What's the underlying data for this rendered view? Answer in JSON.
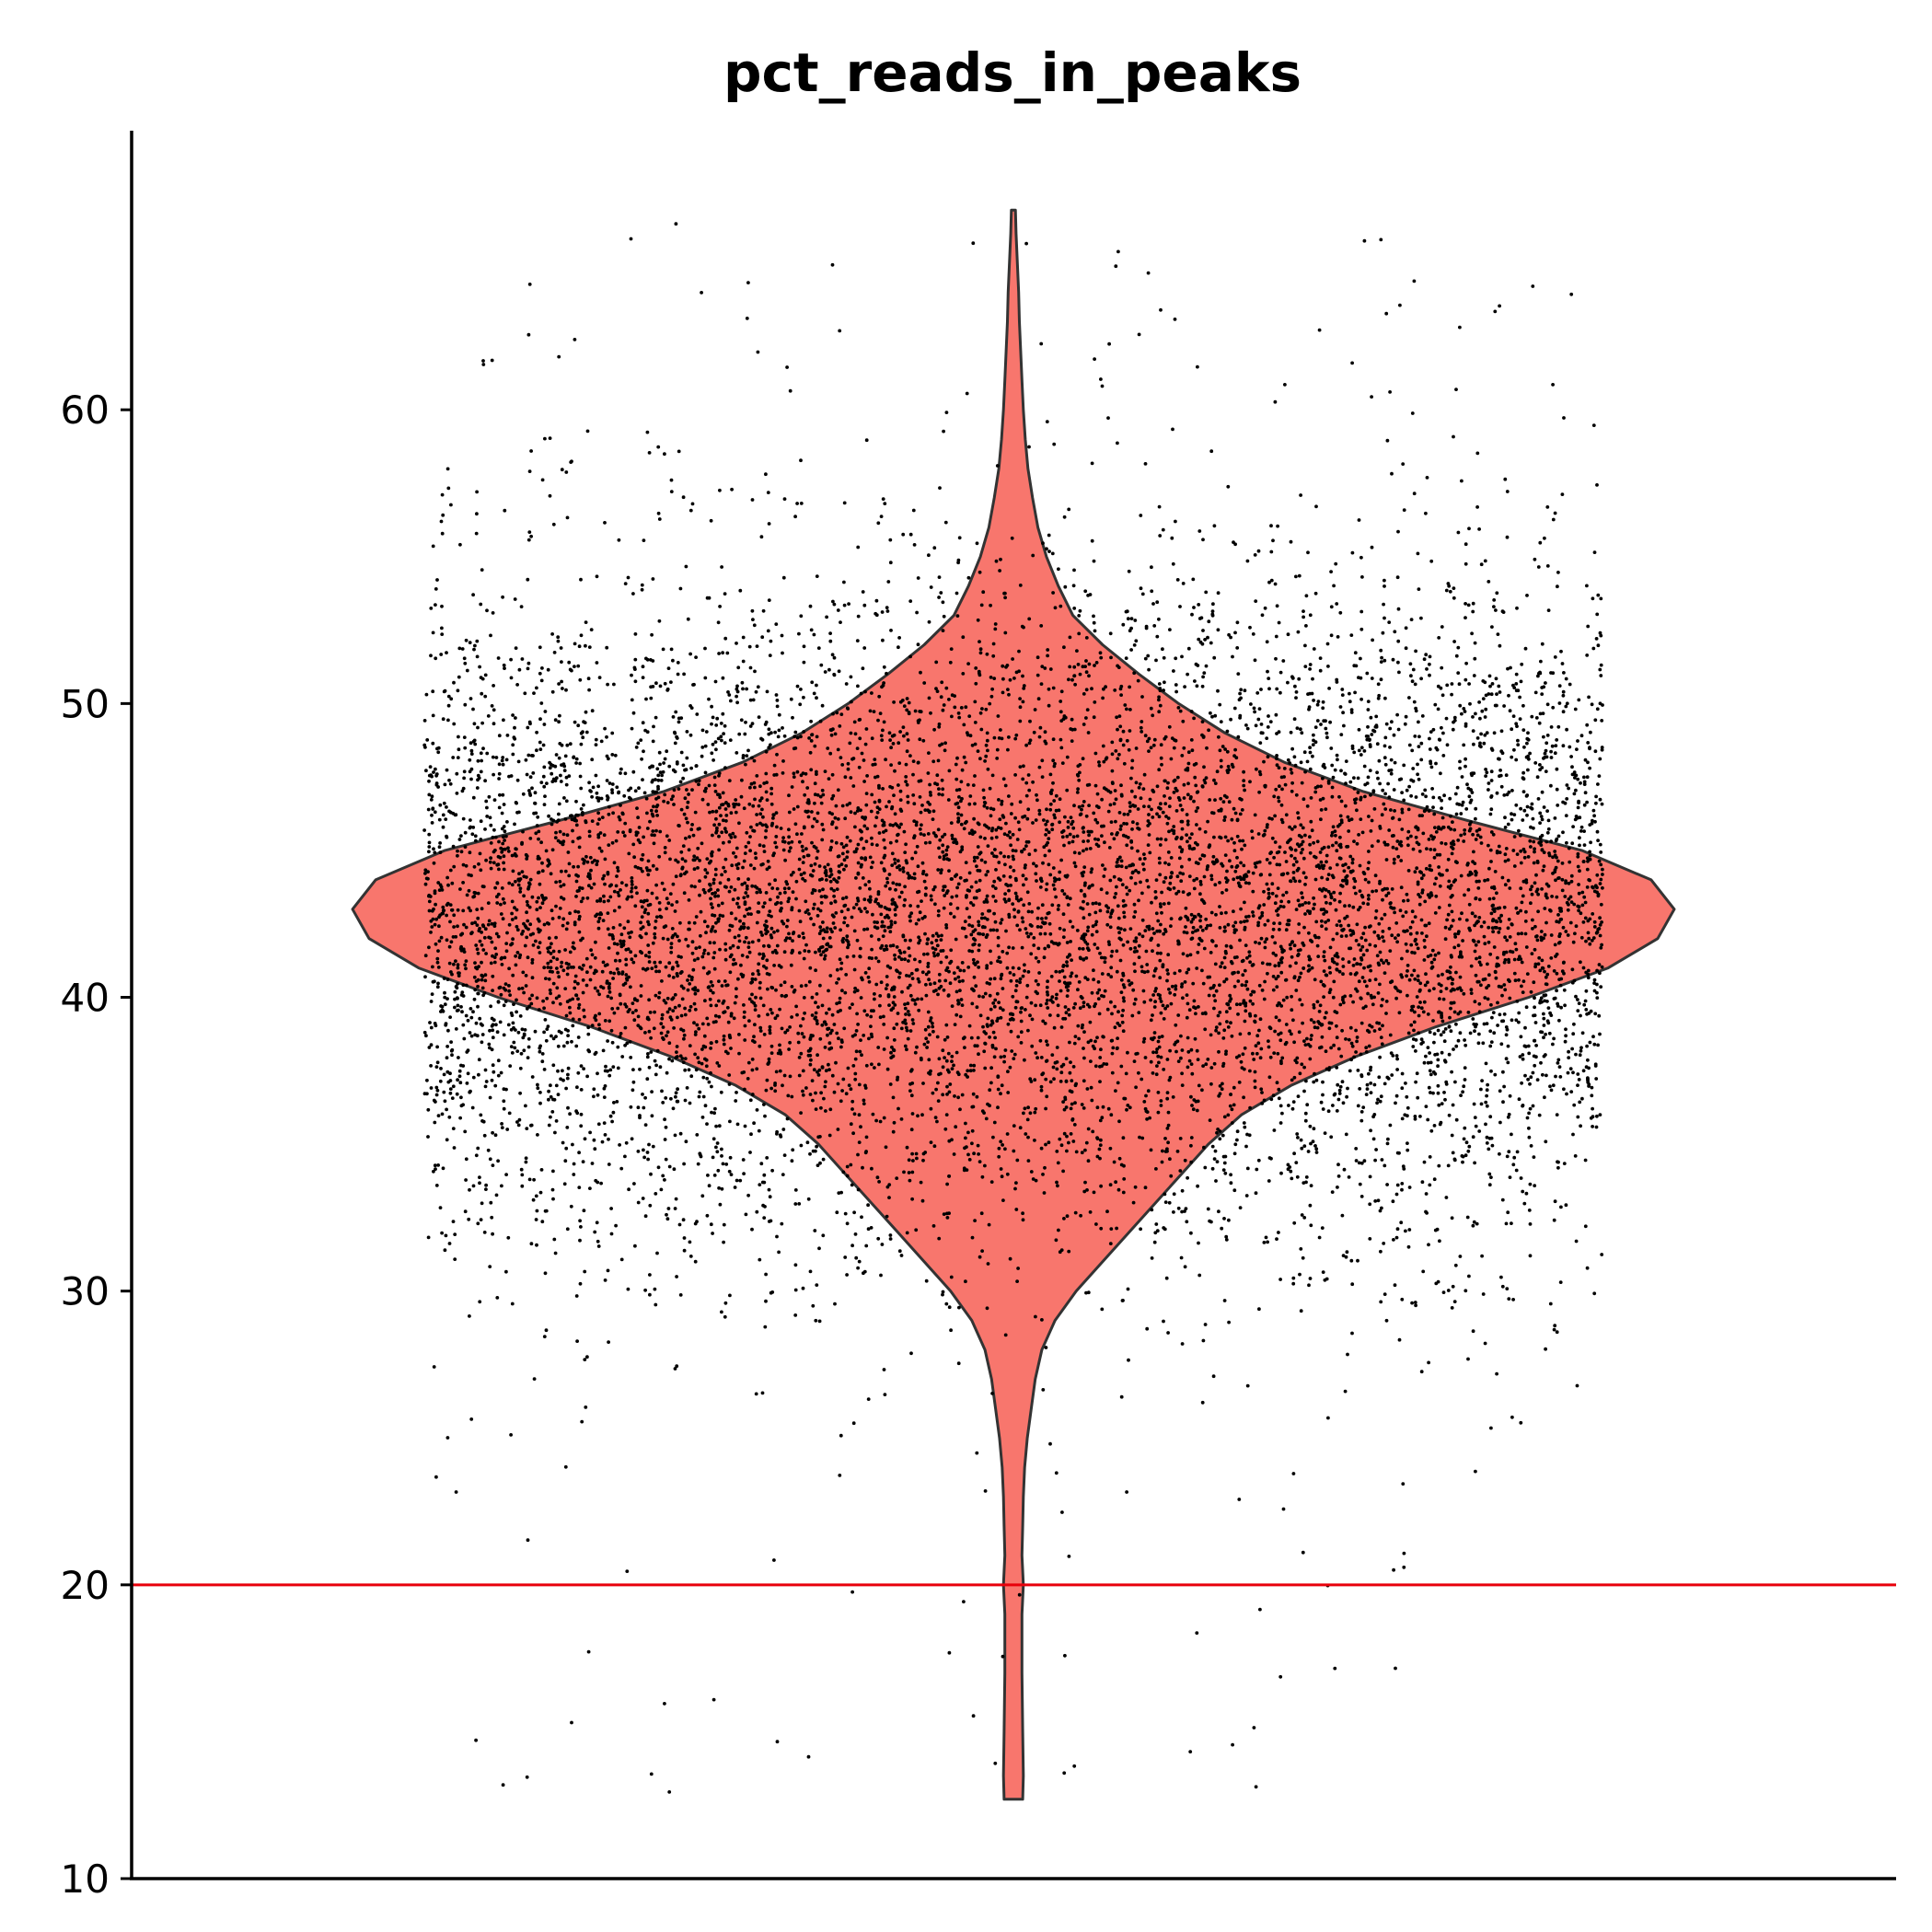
{
  "chart_data": {
    "type": "violin",
    "title": "pct_reads_in_peaks",
    "xlabel": "",
    "ylabel": "",
    "ylim": [
      10,
      69.5
    ],
    "yticks": [
      10,
      20,
      30,
      40,
      50,
      60
    ],
    "grid": false,
    "legend": "none",
    "threshold_line": {
      "y": 20,
      "color": "#e8000b"
    },
    "violin": {
      "fill": "#f8766d",
      "outline": "#333333",
      "min": 12.7,
      "max": 66.8,
      "density_profile": [
        [
          12.7,
          0.014
        ],
        [
          13.5,
          0.015
        ],
        [
          15,
          0.014
        ],
        [
          17,
          0.013
        ],
        [
          19,
          0.013
        ],
        [
          20,
          0.015
        ],
        [
          21,
          0.013
        ],
        [
          22,
          0.014
        ],
        [
          23,
          0.015
        ],
        [
          24,
          0.017
        ],
        [
          25,
          0.021
        ],
        [
          26,
          0.027
        ],
        [
          27,
          0.033
        ],
        [
          28,
          0.043
        ],
        [
          29,
          0.063
        ],
        [
          30,
          0.095
        ],
        [
          31,
          0.135
        ],
        [
          32,
          0.175
        ],
        [
          33,
          0.215
        ],
        [
          34,
          0.255
        ],
        [
          35,
          0.295
        ],
        [
          36,
          0.345
        ],
        [
          37,
          0.42
        ],
        [
          38,
          0.52
        ],
        [
          39,
          0.64
        ],
        [
          40,
          0.78
        ],
        [
          41,
          0.9
        ],
        [
          42,
          0.975
        ],
        [
          43,
          1.0
        ],
        [
          44,
          0.965
        ],
        [
          45,
          0.86
        ],
        [
          46,
          0.69
        ],
        [
          47,
          0.53
        ],
        [
          48,
          0.41
        ],
        [
          49,
          0.32
        ],
        [
          50,
          0.25
        ],
        [
          51,
          0.19
        ],
        [
          52,
          0.135
        ],
        [
          53,
          0.09
        ],
        [
          54,
          0.068
        ],
        [
          55,
          0.05
        ],
        [
          56,
          0.037
        ],
        [
          57,
          0.029
        ],
        [
          58,
          0.022
        ],
        [
          59,
          0.018
        ],
        [
          60,
          0.015
        ],
        [
          61,
          0.013
        ],
        [
          62,
          0.011
        ],
        [
          63,
          0.009
        ],
        [
          64,
          0.008
        ],
        [
          65,
          0.006
        ],
        [
          66,
          0.004
        ],
        [
          66.8,
          0.003
        ]
      ]
    },
    "points": {
      "color": "#000000",
      "count": 9500,
      "center": 43,
      "sd": 5.4,
      "min": 12.7,
      "max": 66.8
    }
  }
}
